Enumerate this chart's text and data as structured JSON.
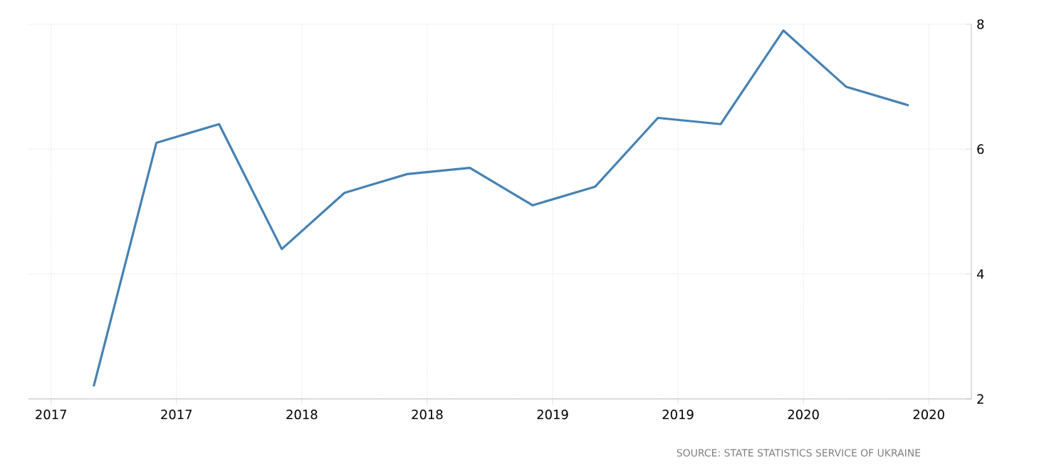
{
  "chart_data": {
    "type": "line",
    "color": "#4682b4",
    "x": [
      2017.17,
      2017.42,
      2017.67,
      2017.92,
      2018.17,
      2018.42,
      2018.67,
      2018.92,
      2019.17,
      2019.42,
      2019.67,
      2019.92,
      2020.17,
      2020.42
    ],
    "values": [
      2.2,
      6.1,
      6.4,
      4.4,
      5.3,
      5.6,
      5.7,
      5.1,
      5.4,
      6.5,
      6.4,
      7.9,
      7.0,
      6.7
    ],
    "xlim": [
      2016.91,
      2020.67
    ],
    "xticks": [
      {
        "value": 2017,
        "label": "2017"
      },
      {
        "value": 2017.5,
        "label": "2017"
      },
      {
        "value": 2018,
        "label": "2018"
      },
      {
        "value": 2018.5,
        "label": "2018"
      },
      {
        "value": 2019,
        "label": "2019"
      },
      {
        "value": 2019.5,
        "label": "2019"
      },
      {
        "value": 2020,
        "label": "2020"
      },
      {
        "value": 2020.5,
        "label": "2020"
      }
    ],
    "ylim": [
      2,
      8
    ],
    "yticks": [
      2,
      4,
      6,
      8
    ],
    "grid": true,
    "marker": "none",
    "line_style": "solid",
    "annotations": [
      "SOURCE: STATE STATISTICS SERVICE OF UKRAINE"
    ]
  }
}
